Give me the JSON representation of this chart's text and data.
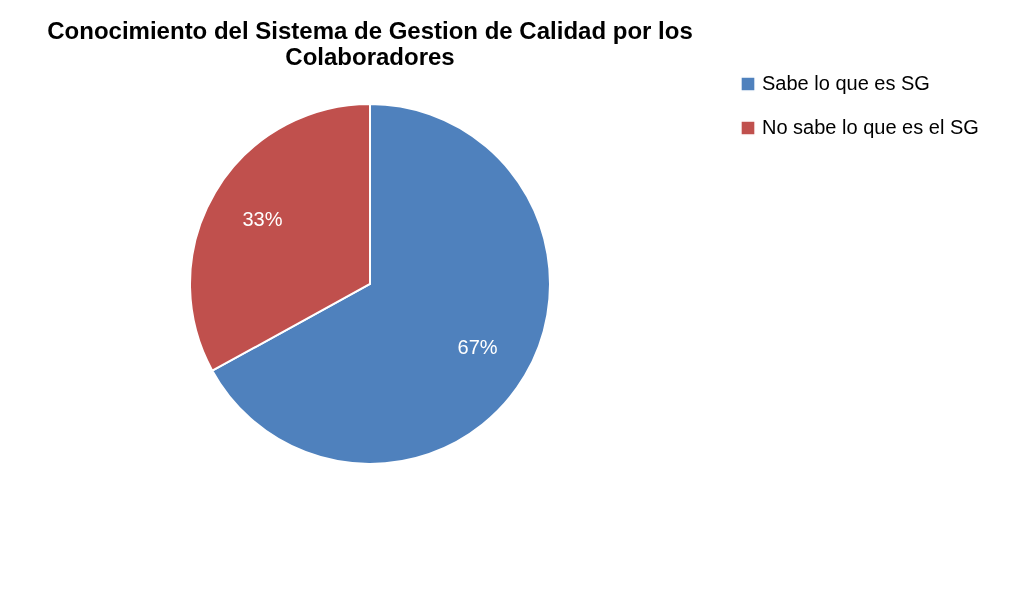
{
  "chart_data": {
    "type": "pie",
    "title": "Conocimiento del Sistema de Gestion de Calidad por los Colaboradores",
    "categories": [
      "Sabe lo que es SG",
      "No sabe lo que es el SG"
    ],
    "values": [
      67,
      33
    ],
    "colors": [
      "#4f81bd",
      "#c0504d"
    ],
    "value_labels": [
      "67%",
      "33%"
    ],
    "legend": "right"
  }
}
